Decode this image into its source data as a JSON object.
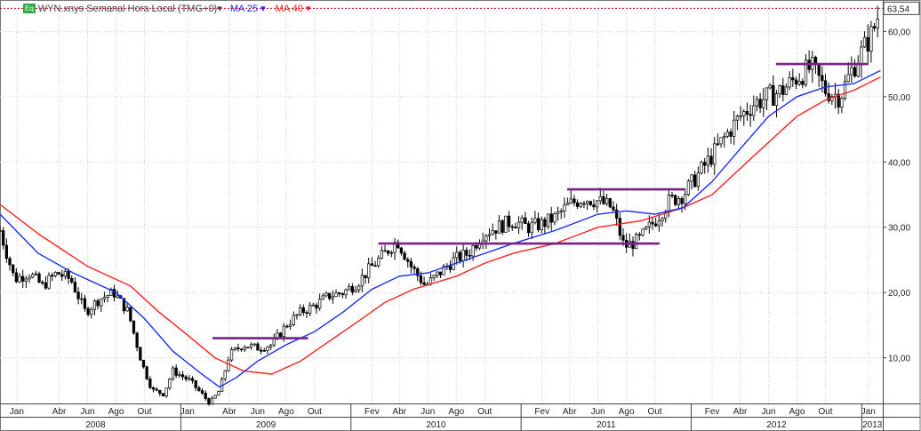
{
  "header": {
    "badge": "Eq",
    "instrument": "WYN.xnys Semanal Hora Local (TMG+0)",
    "ma25_label": "MA 25",
    "ma40_label": "MA 40",
    "dropdown_glyph": "▾"
  },
  "colors": {
    "ma25": "#1a2cff",
    "ma40": "#ff2020",
    "levels": "#7a1e8a",
    "price": "#000000",
    "grid": "#cfcfcf",
    "last_price_line": "#cc0000"
  },
  "chart_data": {
    "type": "candlestick",
    "title": "",
    "xlabel": "",
    "ylabel": "",
    "y_axis_position": "right",
    "grid": true,
    "ylim": [
      3,
      64
    ],
    "y_ticks": [
      {
        "value": 10,
        "label": "10,00"
      },
      {
        "value": 20,
        "label": "20,00"
      },
      {
        "value": 30,
        "label": "30,00"
      },
      {
        "value": 40,
        "label": "40,00"
      },
      {
        "value": 50,
        "label": "50,00"
      },
      {
        "value": 60,
        "label": "60,00"
      }
    ],
    "last_price": {
      "value": 63.54,
      "label": "63,54"
    },
    "xlim": [
      "2007-12-10",
      "2013-02-15"
    ],
    "month_ticks": [
      {
        "date": "2008-01-15",
        "label": "Jan"
      },
      {
        "date": "2008-04-15",
        "label": "Abr"
      },
      {
        "date": "2008-06-15",
        "label": "Jun"
      },
      {
        "date": "2008-08-15",
        "label": "Ago"
      },
      {
        "date": "2008-10-15",
        "label": "Out"
      },
      {
        "date": "2009-01-15",
        "label": "Jan"
      },
      {
        "date": "2009-04-15",
        "label": "Abr"
      },
      {
        "date": "2009-06-15",
        "label": "Jun"
      },
      {
        "date": "2009-08-15",
        "label": "Ago"
      },
      {
        "date": "2009-10-15",
        "label": "Out"
      },
      {
        "date": "2010-02-15",
        "label": "Fev"
      },
      {
        "date": "2010-04-15",
        "label": "Abr"
      },
      {
        "date": "2010-06-15",
        "label": "Jun"
      },
      {
        "date": "2010-08-15",
        "label": "Ago"
      },
      {
        "date": "2010-10-15",
        "label": "Out"
      },
      {
        "date": "2011-02-15",
        "label": "Fev"
      },
      {
        "date": "2011-04-15",
        "label": "Abr"
      },
      {
        "date": "2011-06-15",
        "label": "Jun"
      },
      {
        "date": "2011-08-15",
        "label": "Ago"
      },
      {
        "date": "2011-10-15",
        "label": "Out"
      },
      {
        "date": "2012-02-15",
        "label": "Fev"
      },
      {
        "date": "2012-04-15",
        "label": "Abr"
      },
      {
        "date": "2012-06-15",
        "label": "Jun"
      },
      {
        "date": "2012-08-15",
        "label": "Ago"
      },
      {
        "date": "2012-10-15",
        "label": "Out"
      },
      {
        "date": "2013-01-15",
        "label": "Jan"
      }
    ],
    "years": [
      {
        "label": "2008",
        "start": "2008-01-01",
        "end": "2009-01-01"
      },
      {
        "label": "2009",
        "start": "2009-01-01",
        "end": "2010-01-01"
      },
      {
        "label": "2010",
        "start": "2010-01-01",
        "end": "2011-01-01"
      },
      {
        "label": "2011",
        "start": "2011-01-01",
        "end": "2012-01-01"
      },
      {
        "label": "2012",
        "start": "2012-01-01",
        "end": "2013-01-01"
      },
      {
        "label": "2013",
        "start": "2013-01-01",
        "end": "2013-02-15"
      }
    ],
    "price_path": [
      [
        "2007-12-10",
        29.5
      ],
      [
        "2008-01-10",
        22
      ],
      [
        "2008-02-10",
        23
      ],
      [
        "2008-03-10",
        21
      ],
      [
        "2008-04-10",
        23
      ],
      [
        "2008-05-10",
        22
      ],
      [
        "2008-06-10",
        17
      ],
      [
        "2008-07-10",
        19
      ],
      [
        "2008-08-10",
        20
      ],
      [
        "2008-09-10",
        17
      ],
      [
        "2008-10-10",
        9
      ],
      [
        "2008-11-01",
        5
      ],
      [
        "2008-11-25",
        4.5
      ],
      [
        "2008-12-15",
        8
      ],
      [
        "2009-01-20",
        6.5
      ],
      [
        "2009-03-05",
        3
      ],
      [
        "2009-03-25",
        5
      ],
      [
        "2009-04-15",
        10.5
      ],
      [
        "2009-05-15",
        12
      ],
      [
        "2009-06-15",
        11.5
      ],
      [
        "2009-07-15",
        12
      ],
      [
        "2009-08-15",
        15
      ],
      [
        "2009-09-15",
        17
      ],
      [
        "2009-10-15",
        18
      ],
      [
        "2009-11-15",
        19.5
      ],
      [
        "2009-12-15",
        20
      ],
      [
        "2010-01-15",
        21.5
      ],
      [
        "2010-02-15",
        24
      ],
      [
        "2010-03-15",
        26
      ],
      [
        "2010-04-10",
        28
      ],
      [
        "2010-05-10",
        24
      ],
      [
        "2010-06-10",
        21
      ],
      [
        "2010-07-10",
        23
      ],
      [
        "2010-08-10",
        25
      ],
      [
        "2010-09-10",
        26
      ],
      [
        "2010-10-10",
        29
      ],
      [
        "2010-11-10",
        30
      ],
      [
        "2010-12-15",
        31
      ],
      [
        "2011-01-15",
        30
      ],
      [
        "2011-02-15",
        30.5
      ],
      [
        "2011-03-15",
        31.5
      ],
      [
        "2011-04-15",
        33.5
      ],
      [
        "2011-05-15",
        34.5
      ],
      [
        "2011-06-15",
        34
      ],
      [
        "2011-07-15",
        33
      ],
      [
        "2011-08-10",
        27
      ],
      [
        "2011-09-10",
        28
      ],
      [
        "2011-10-15",
        31
      ],
      [
        "2011-11-15",
        34
      ],
      [
        "2011-12-15",
        35
      ],
      [
        "2012-01-15",
        38
      ],
      [
        "2012-02-15",
        41
      ],
      [
        "2012-03-15",
        44
      ],
      [
        "2012-04-15",
        47
      ],
      [
        "2012-05-15",
        49
      ],
      [
        "2012-06-15",
        50
      ],
      [
        "2012-07-15",
        51
      ],
      [
        "2012-08-15",
        53
      ],
      [
        "2012-09-15",
        54.5
      ],
      [
        "2012-10-15",
        51
      ],
      [
        "2012-11-15",
        50
      ],
      [
        "2012-12-10",
        54
      ],
      [
        "2013-01-10",
        58
      ],
      [
        "2013-01-25",
        60
      ],
      [
        "2013-02-10",
        63.54
      ]
    ],
    "ma25": [
      [
        "2007-12-10",
        32
      ],
      [
        "2008-03-01",
        26
      ],
      [
        "2008-05-15",
        23
      ],
      [
        "2008-08-15",
        20
      ],
      [
        "2008-10-15",
        16
      ],
      [
        "2008-12-15",
        11
      ],
      [
        "2009-02-15",
        7.5
      ],
      [
        "2009-03-25",
        5.5
      ],
      [
        "2009-05-01",
        7
      ],
      [
        "2009-06-15",
        9.5
      ],
      [
        "2009-08-15",
        12
      ],
      [
        "2009-10-15",
        14
      ],
      [
        "2009-12-15",
        17
      ],
      [
        "2010-02-15",
        20.5
      ],
      [
        "2010-04-15",
        22.5
      ],
      [
        "2010-06-15",
        23
      ],
      [
        "2010-08-15",
        24.5
      ],
      [
        "2010-10-15",
        26
      ],
      [
        "2010-12-15",
        27.5
      ],
      [
        "2011-03-15",
        29.5
      ],
      [
        "2011-06-15",
        32
      ],
      [
        "2011-08-15",
        32.5
      ],
      [
        "2011-10-15",
        32
      ],
      [
        "2011-12-15",
        33
      ],
      [
        "2012-02-15",
        37
      ],
      [
        "2012-04-15",
        42
      ],
      [
        "2012-06-15",
        47
      ],
      [
        "2012-08-15",
        50
      ],
      [
        "2012-10-15",
        51.5
      ],
      [
        "2012-12-15",
        52
      ],
      [
        "2013-02-10",
        54
      ]
    ],
    "ma40": [
      [
        "2007-12-10",
        33.5
      ],
      [
        "2008-03-01",
        29
      ],
      [
        "2008-06-15",
        24
      ],
      [
        "2008-09-15",
        21
      ],
      [
        "2008-11-15",
        17
      ],
      [
        "2009-01-15",
        13.5
      ],
      [
        "2009-03-15",
        10
      ],
      [
        "2009-05-15",
        8
      ],
      [
        "2009-07-15",
        7.5
      ],
      [
        "2009-09-15",
        9.5
      ],
      [
        "2009-11-15",
        12.5
      ],
      [
        "2010-01-15",
        15.5
      ],
      [
        "2010-03-15",
        18.5
      ],
      [
        "2010-05-15",
        20.5
      ],
      [
        "2010-08-15",
        22.5
      ],
      [
        "2010-10-15",
        24.5
      ],
      [
        "2010-12-15",
        26
      ],
      [
        "2011-03-15",
        27.5
      ],
      [
        "2011-06-15",
        30
      ],
      [
        "2011-09-15",
        31
      ],
      [
        "2011-12-15",
        33
      ],
      [
        "2012-02-15",
        35
      ],
      [
        "2012-04-15",
        39
      ],
      [
        "2012-06-15",
        43
      ],
      [
        "2012-08-15",
        47
      ],
      [
        "2012-10-15",
        49.5
      ],
      [
        "2012-12-15",
        51
      ],
      [
        "2013-02-10",
        53
      ]
    ],
    "levels": [
      {
        "value": 13,
        "start": "2009-03-10",
        "end": "2009-10-01"
      },
      {
        "value": 27.5,
        "start": "2010-03-01",
        "end": "2011-10-25"
      },
      {
        "value": 35.8,
        "start": "2011-04-10",
        "end": "2011-12-20"
      },
      {
        "value": 55,
        "start": "2012-07-01",
        "end": "2013-01-15"
      }
    ]
  }
}
